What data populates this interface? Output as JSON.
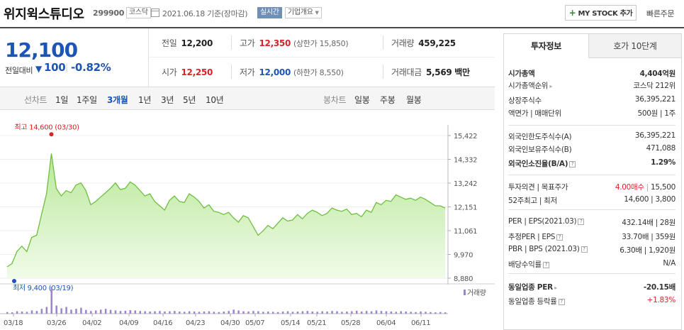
{
  "header": {
    "name": "위지윅스튜디오",
    "code": "299900",
    "market": "코스닥",
    "date": "2021.06.18 기준(장마감)",
    "realtime": "실시간",
    "company_info": "기업개요",
    "mystock": "MY STOCK 추가",
    "quick_order": "빠른주문"
  },
  "price": {
    "now": "12,100",
    "change_label": "전일대비",
    "change_amount": "100",
    "change_pct": "-0.82%"
  },
  "summary": {
    "prev_label": "전일",
    "prev": "12,200",
    "high_label": "고가",
    "high": "12,350",
    "upper_limit": "(상한가 15,850)",
    "volume_label": "거래량",
    "volume": "459,225",
    "open_label": "시가",
    "open": "12,250",
    "low_label": "저가",
    "low": "12,000",
    "lower_limit": "(하한가 8,550)",
    "amount_label": "거래대금",
    "amount": "5,569 백만"
  },
  "periods": {
    "line_label": "선차트",
    "items": [
      "1일",
      "1주일",
      "3개월",
      "1년",
      "3년",
      "5년",
      "10년"
    ],
    "active": "3개월",
    "candle_label": "봉차트",
    "candle_items": [
      "일봉",
      "주봉",
      "월봉"
    ]
  },
  "chart_data": {
    "type": "area",
    "y_ticks": [
      "15,422",
      "14,332",
      "13,242",
      "12,151",
      "11,061",
      "9,970",
      "8,880"
    ],
    "ylim": [
      8880,
      15422
    ],
    "x_labels": [
      "03/18",
      "03/26",
      "04/02",
      "04/09",
      "04/16",
      "04/23",
      "04/30",
      "05/07",
      "05/14",
      "05/21",
      "05/28",
      "06/04",
      "06/11"
    ],
    "max_label": "최고 14,600 (03/30)",
    "min_label": "최저 9,400 (03/19)",
    "volume_legend": "거래량",
    "values": [
      9400,
      9550,
      10100,
      10350,
      10100,
      10750,
      10850,
      11800,
      12750,
      14600,
      13000,
      12650,
      12900,
      12800,
      13150,
      13250,
      12900,
      12250,
      12400,
      12600,
      12800,
      13000,
      13250,
      12950,
      13000,
      13300,
      13150,
      12900,
      12650,
      12750,
      12400,
      12200,
      12000,
      12450,
      12650,
      12400,
      12350,
      12750,
      12600,
      12400,
      12100,
      12250,
      11950,
      11900,
      11800,
      11900,
      11650,
      11450,
      11750,
      11650,
      11250,
      10850,
      11050,
      11300,
      11150,
      11400,
      11650,
      11500,
      11550,
      11800,
      11600,
      11850,
      12000,
      11900,
      11750,
      11850,
      12100,
      12000,
      11950,
      12050,
      11800,
      11850,
      11700,
      12000,
      11900,
      12350,
      12250,
      12450,
      12400,
      12700,
      12600,
      12500,
      12550,
      12450,
      12600,
      12500,
      12350,
      12200,
      12200,
      12100
    ],
    "volumes": [
      6,
      5,
      9,
      8,
      7,
      12,
      10,
      18,
      25,
      100,
      30,
      20,
      25,
      15,
      18,
      22,
      14,
      10,
      12,
      15,
      18,
      14,
      12,
      10,
      11,
      13,
      12,
      10,
      9,
      8,
      9,
      10,
      8,
      9,
      10,
      8,
      7,
      9,
      8,
      7,
      8,
      9,
      7,
      6,
      8,
      10,
      15,
      12,
      9,
      8,
      10,
      9,
      7,
      8,
      7,
      6,
      8,
      9,
      7,
      8,
      9,
      10,
      8,
      7,
      9,
      8,
      10,
      9,
      7,
      8,
      9,
      11,
      8,
      10,
      9,
      12,
      10,
      9,
      8,
      7,
      9,
      8,
      7,
      6,
      8,
      7,
      6,
      5,
      6,
      5
    ]
  },
  "panel": {
    "tab_invest": "투자정보",
    "tab_hoga": "호가 10단계",
    "rows": [
      {
        "l": "시가총액",
        "r": "4,404억원",
        "bold": true
      },
      {
        "l": "시가총액순위",
        "r": "코스닥 212위",
        "arrow": true
      },
      {
        "l": "상장주식수",
        "r": "36,395,221"
      },
      {
        "l": "액면가 | 매매단위",
        "r": "500원 | 1주"
      },
      {
        "l": "외국인한도주식수(A)",
        "r": "36,395,221"
      },
      {
        "l": "외국인보유주식수(B)",
        "r": "471,088"
      },
      {
        "l": "외국인소진율(B/A)",
        "r": "1.29%",
        "bold": true,
        "q": true
      },
      {
        "l": "투자의견 | 목표주가",
        "r1": "4.00매수",
        "r2": "15,500"
      },
      {
        "l": "52주최고 | 최저",
        "r": "14,600 | 3,800"
      },
      {
        "l": "PER | EPS(2021.03)",
        "r": "432.14배 | 28원",
        "q": true
      },
      {
        "l": "추정PER | EPS",
        "r": "33.70배 | 359원",
        "q": true
      },
      {
        "l": "PBR | BPS (2021.03)",
        "r": "6.30배 | 1,920원",
        "q": true
      },
      {
        "l": "배당수익률",
        "r": "N/A",
        "q": true
      },
      {
        "l": "동일업종 PER",
        "r": "-20.15배",
        "bold": true,
        "arrow": true
      },
      {
        "l": "동일업종 등락률",
        "r": "+1.83%",
        "red": true,
        "q": true
      }
    ]
  }
}
